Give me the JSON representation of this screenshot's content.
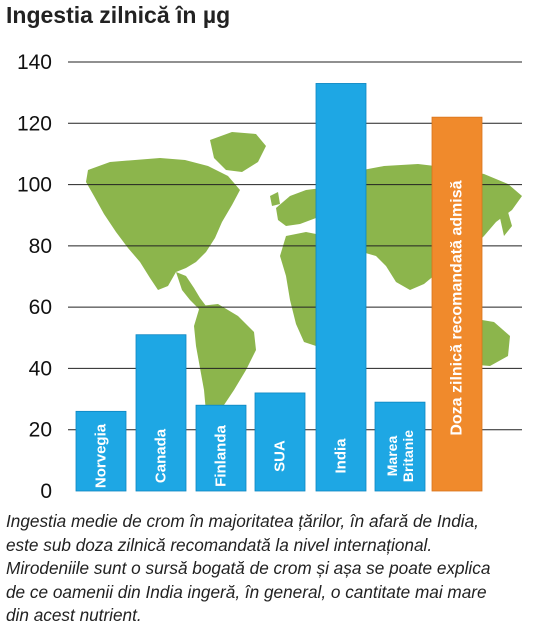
{
  "chart_data": {
    "type": "bar",
    "title": "Ingestia zilnică în µg",
    "xlabel": "",
    "ylabel": "",
    "categories": [
      "Norvegia",
      "Canada",
      "Finlanda",
      "SUA",
      "India",
      "Marea Britanie"
    ],
    "values": [
      26,
      51,
      28,
      32,
      133,
      29
    ],
    "reference_bar": {
      "label": "Doza zilnică recomandată admisă",
      "value": 122
    },
    "yticks": [
      0,
      20,
      40,
      60,
      80,
      100,
      120,
      140
    ],
    "ylim": [
      0,
      140
    ],
    "grid": true,
    "colors": {
      "bars": "#1ea7e4",
      "reference": "#f08a2c",
      "map": "#8cb54c",
      "grid": "#222222"
    }
  },
  "caption": {
    "lines": [
      "Ingestia medie de crom în majoritatea țărilor, în afară de India,",
      "este sub doza zilnică recomandată la nivel internațional.",
      "Mirodeniile sunt o sursă bogată de crom și așa se poate explica",
      "de ce oamenii din India ingeră, în general, o cantitate mai mare",
      "din acest nutrient."
    ]
  },
  "background": {
    "icon": "world-map-icon"
  }
}
